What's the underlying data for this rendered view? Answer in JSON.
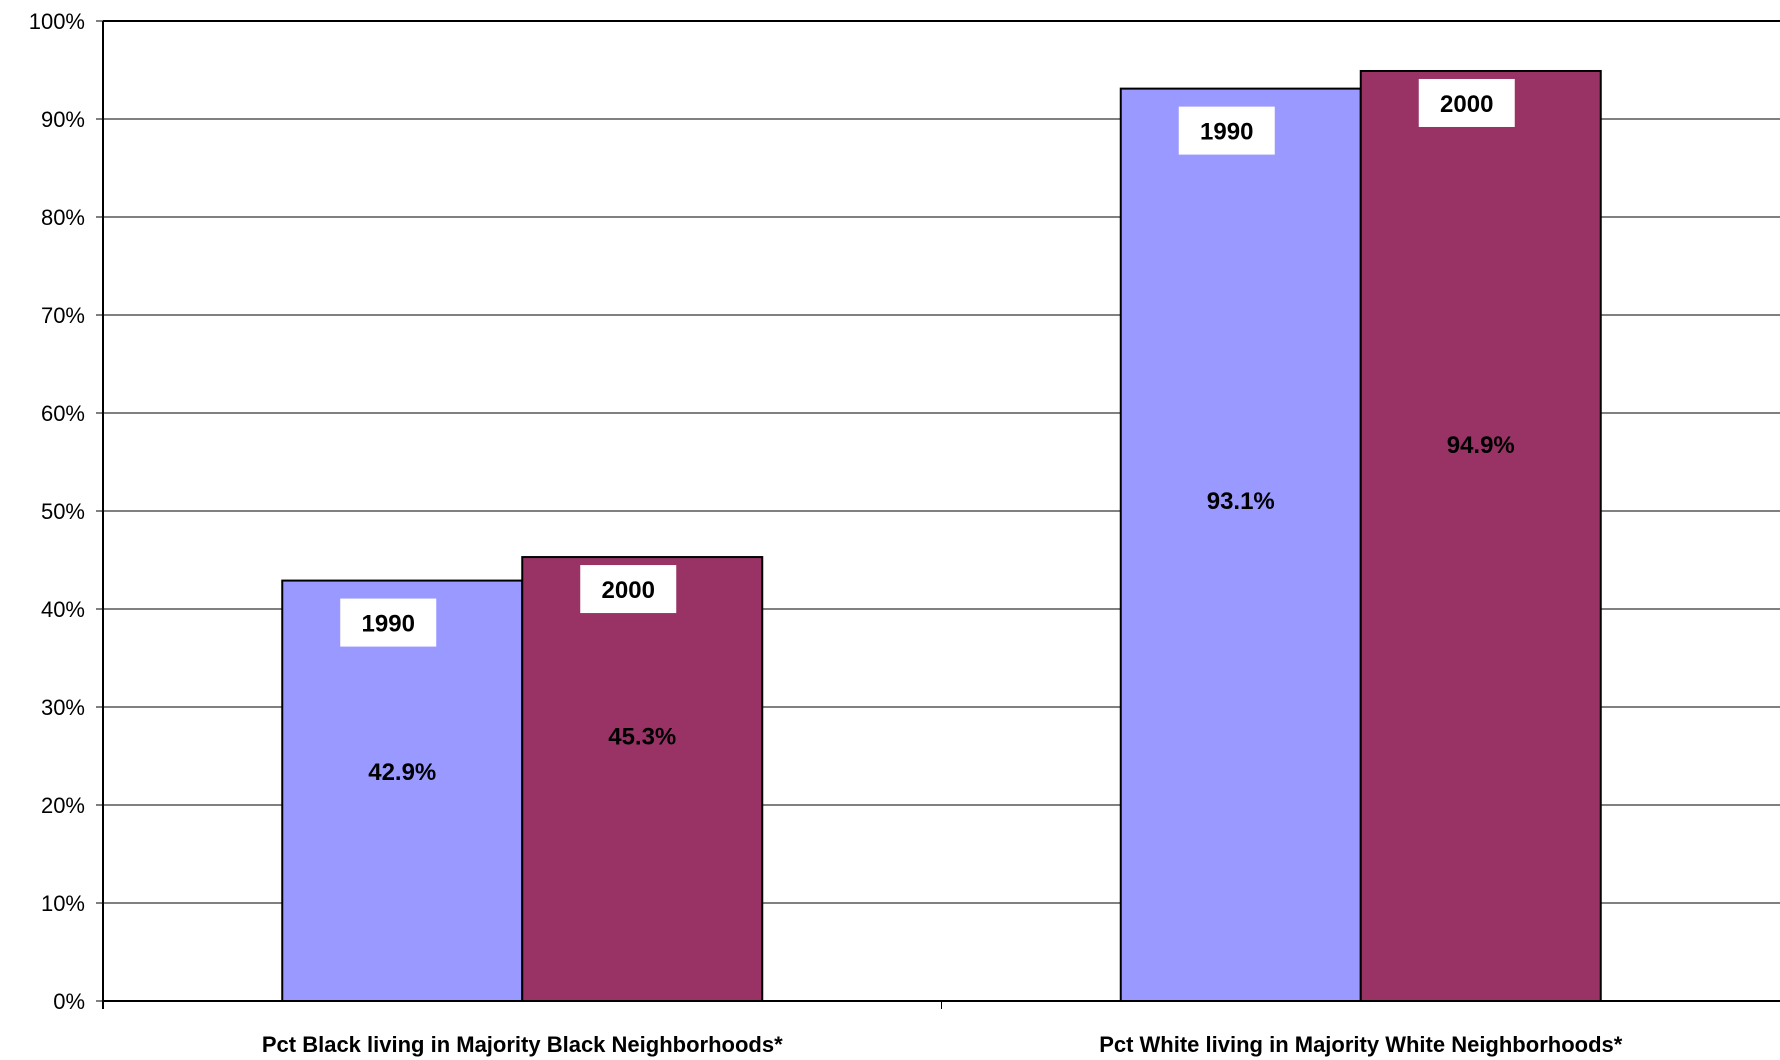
{
  "chart_data": {
    "type": "bar",
    "categories": [
      "Pct Black living in Majority Black Neighborhoods*",
      "Pct White living in Majority White Neighborhoods*"
    ],
    "series": [
      {
        "name": "1990",
        "values": [
          42.9,
          93.1
        ],
        "labels": [
          "42.9%",
          "93.1%"
        ],
        "color": "#9999ff"
      },
      {
        "name": "2000",
        "values": [
          45.3,
          94.9
        ],
        "labels": [
          "45.3%",
          "94.9%"
        ],
        "color": "#993366"
      }
    ],
    "title": "",
    "xlabel": "",
    "ylabel": "",
    "ylim": [
      0,
      100
    ],
    "yticks": [
      "0%",
      "10%",
      "20%",
      "30%",
      "40%",
      "50%",
      "60%",
      "70%",
      "80%",
      "90%",
      "100%"
    ],
    "grid": true,
    "legend": "none"
  }
}
